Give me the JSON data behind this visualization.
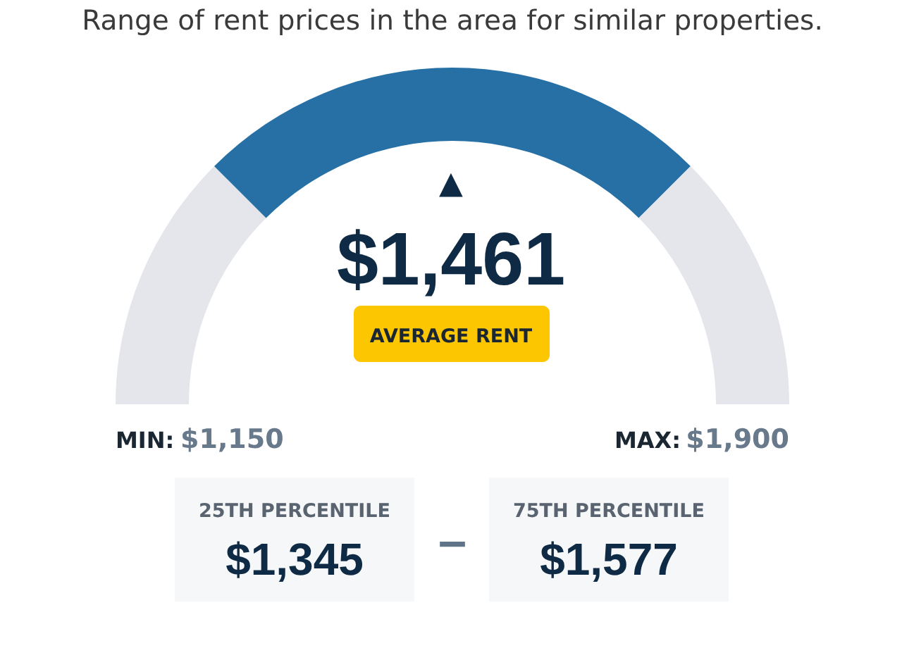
{
  "chart_data": {
    "type": "donut",
    "title": "Range of rent prices in the area for similar properties.",
    "categories": [
      null,
      null,
      null
    ],
    "values": [
      25,
      50,
      25
    ],
    "colors": [
      "#e4e6eb",
      "#2670a6",
      "#e4e6eb"
    ],
    "annotations": [
      "▲",
      "$1,461",
      "AVERAGE RENT",
      "MIN: $1,150",
      "MAX: $1,900",
      "25TH PERCENTILE",
      "$1,345",
      "–",
      "75TH PERCENTILE",
      "$1,577"
    ]
  }
}
